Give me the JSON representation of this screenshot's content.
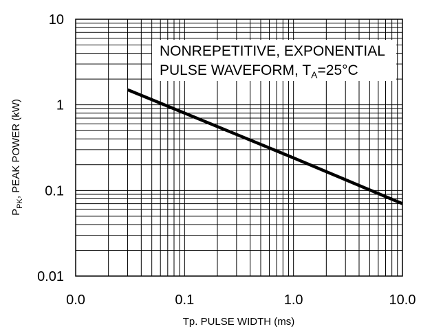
{
  "chart_data": {
    "type": "line",
    "xlabel": "Tp. PULSE WIDTH (ms)",
    "ylabel": {
      "main": "P",
      "sub": "PK",
      "rest": ", PEAK POWER (kW)"
    },
    "x_scale": "log",
    "y_scale": "log",
    "xlim": [
      0.01,
      10
    ],
    "ylim": [
      0.01,
      10
    ],
    "x_ticks": [
      {
        "value": 0.01,
        "label": "0.0"
      },
      {
        "value": 0.1,
        "label": "0.1"
      },
      {
        "value": 1,
        "label": "1.0"
      },
      {
        "value": 10,
        "label": "10.0"
      }
    ],
    "y_ticks": [
      {
        "value": 0.01,
        "label": "0.01"
      },
      {
        "value": 0.1,
        "label": "0.1"
      },
      {
        "value": 1,
        "label": "1"
      },
      {
        "value": 10,
        "label": "10"
      }
    ],
    "grid": {
      "major": true,
      "minor": true,
      "color": "#000000"
    },
    "series": [
      {
        "x": [
          0.03,
          0.1,
          1,
          10
        ],
        "y": [
          1.5,
          0.8,
          0.24,
          0.07
        ],
        "color": "#000000"
      }
    ],
    "annotation": {
      "line1": "NONREPETITIVE, EXPONENTIAL",
      "line2": "PULSE WAVEFORM, T",
      "line2_sub": "A",
      "line2_tail": "=25°C"
    }
  }
}
